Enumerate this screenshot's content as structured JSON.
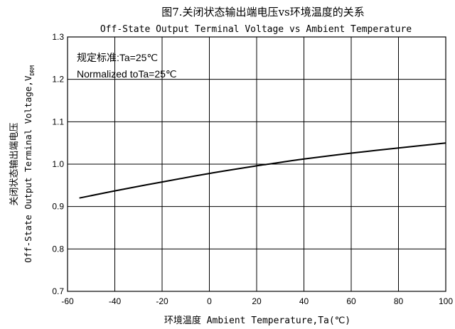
{
  "chart_data": {
    "type": "line",
    "title": "图7.关闭状态输出端电压vs环境温度的关系",
    "subtitle": "Off-State Output Terminal Voltage vs Ambient Temperature",
    "xlabel": "环境温度 Ambient Temperature,Ta(℃)",
    "ylabel": "关闭状态输出端电压",
    "ylabel2": "Off-State Output Terminal Voltage,V",
    "ylabel_sub": "DRM",
    "xlim": [
      -60,
      100
    ],
    "ylim": [
      0.7,
      1.3
    ],
    "xticks": [
      "-60",
      "-40",
      "-20",
      "0",
      "20",
      "40",
      "60",
      "80",
      "100"
    ],
    "yticks": [
      "0.7",
      "0.8",
      "0.9",
      "1.0",
      "1.1",
      "1.2",
      "1.3"
    ],
    "grid": true,
    "annotations": [
      "规定标准:Ta=25℃",
      "Normalized toTa=25℃"
    ],
    "series": [
      {
        "x": [
          -55,
          -40,
          -20,
          0,
          20,
          25,
          40,
          60,
          80,
          100
        ],
        "y": [
          0.92,
          0.937,
          0.958,
          0.978,
          0.996,
          1.0,
          1.012,
          1.026,
          1.038,
          1.05
        ]
      }
    ]
  }
}
